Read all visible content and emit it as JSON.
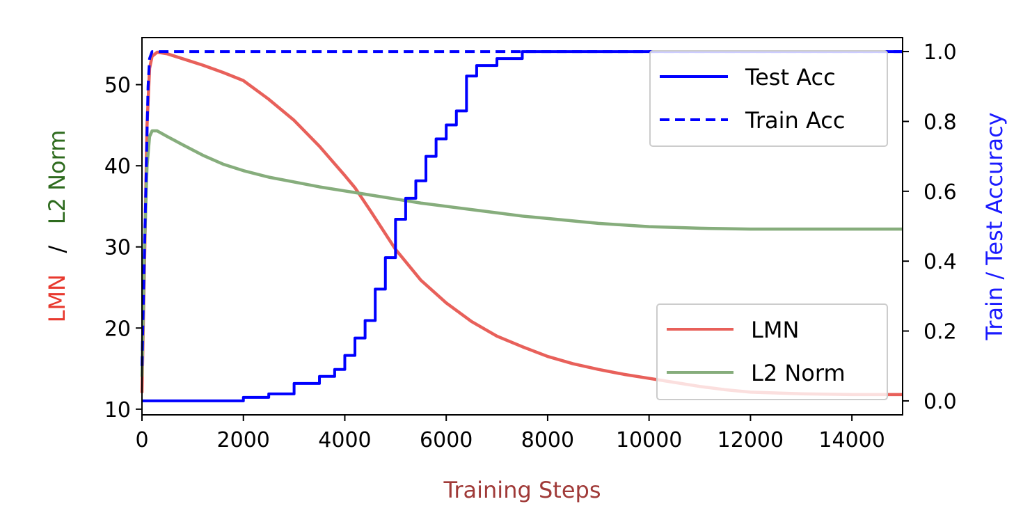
{
  "chart_data": {
    "type": "line",
    "xlabel": "Training Steps",
    "ylabel_left": {
      "part1": "LMN",
      "separator": "/",
      "part2": "L2 Norm"
    },
    "ylabel_right": "Train / Test Accuracy",
    "xlim": [
      0,
      15000
    ],
    "ylim_left": [
      9.3,
      55.8
    ],
    "ylim_right": [
      -0.04,
      1.04
    ],
    "x_ticks": [
      "0",
      "2000",
      "4000",
      "6000",
      "8000",
      "10000",
      "12000",
      "14000"
    ],
    "x_tick_values": [
      0,
      2000,
      4000,
      6000,
      8000,
      10000,
      12000,
      14000
    ],
    "y_left_ticks": [
      "10",
      "20",
      "30",
      "40",
      "50"
    ],
    "y_left_tick_values": [
      10,
      20,
      30,
      40,
      50
    ],
    "y_right_ticks": [
      "0.0",
      "0.2",
      "0.4",
      "0.6",
      "0.8",
      "1.0"
    ],
    "y_right_tick_values": [
      0.0,
      0.2,
      0.4,
      0.6,
      0.8,
      1.0
    ],
    "grid": false,
    "colors": {
      "lmn": "#e8605a",
      "l2norm": "#86ad7c",
      "acc": "#0000ff",
      "label_lmn": "#e8392e",
      "label_l2": "#2e6b1e",
      "label_right": "#1a1aff",
      "xlabel": "#a03a38"
    },
    "series": [
      {
        "name": "LMN",
        "axis": "left",
        "x": [
          0,
          50,
          100,
          150,
          200,
          300,
          500,
          800,
          1200,
          1600,
          2000,
          2500,
          3000,
          3500,
          4000,
          4200,
          4500,
          5000,
          5500,
          6000,
          6500,
          7000,
          7500,
          8000,
          8500,
          9000,
          9500,
          10000,
          10500,
          11000,
          11500,
          12000,
          13000,
          14000,
          15000
        ],
        "y": [
          12,
          28,
          45,
          52,
          53.5,
          54,
          53.8,
          53.2,
          52.4,
          51.5,
          50.5,
          48.2,
          45.6,
          42.4,
          38.8,
          37.3,
          34.5,
          29.7,
          25.9,
          23.1,
          20.8,
          19.0,
          17.7,
          16.5,
          15.6,
          14.9,
          14.3,
          13.8,
          13.3,
          12.8,
          12.4,
          12.1,
          11.9,
          11.8,
          11.8
        ]
      },
      {
        "name": "L2 Norm",
        "axis": "left",
        "x": [
          0,
          50,
          100,
          150,
          200,
          300,
          500,
          800,
          1200,
          1600,
          2000,
          2500,
          3000,
          3500,
          4000,
          4500,
          5000,
          5500,
          6000,
          6500,
          7000,
          7500,
          8000,
          8500,
          9000,
          9500,
          10000,
          10500,
          11000,
          11500,
          12000,
          13000,
          14000,
          15000
        ],
        "y": [
          14,
          30,
          40,
          43.6,
          44.3,
          44.3,
          43.6,
          42.6,
          41.3,
          40.2,
          39.4,
          38.6,
          38.0,
          37.4,
          36.9,
          36.4,
          35.9,
          35.4,
          35.0,
          34.6,
          34.2,
          33.8,
          33.5,
          33.2,
          32.9,
          32.7,
          32.5,
          32.4,
          32.3,
          32.25,
          32.2,
          32.2,
          32.2,
          32.2
        ]
      },
      {
        "name": "Test Acc",
        "axis": "right",
        "style": "solid",
        "x": [
          0,
          1900,
          2000,
          2500,
          3000,
          3500,
          3800,
          4000,
          4200,
          4400,
          4600,
          4800,
          5000,
          5200,
          5400,
          5600,
          5800,
          6000,
          6200,
          6400,
          6600,
          7000,
          7500,
          15000
        ],
        "y": [
          0.0,
          0.0,
          0.01,
          0.02,
          0.05,
          0.07,
          0.09,
          0.13,
          0.18,
          0.23,
          0.32,
          0.41,
          0.52,
          0.58,
          0.63,
          0.7,
          0.75,
          0.79,
          0.83,
          0.93,
          0.96,
          0.98,
          1.0,
          1.0
        ]
      },
      {
        "name": "Train Acc",
        "axis": "right",
        "style": "dashed",
        "x": [
          0,
          60,
          120,
          150,
          200,
          15000
        ],
        "y": [
          0.1,
          0.5,
          0.9,
          0.98,
          1.0,
          1.0
        ]
      }
    ],
    "legend_upper": {
      "placement": "top-right",
      "items": [
        {
          "label": "Test Acc",
          "style": "solid"
        },
        {
          "label": "Train Acc",
          "style": "dashed"
        }
      ]
    },
    "legend_lower": {
      "placement": "lower-right",
      "items": [
        {
          "label": "LMN"
        },
        {
          "label": "L2 Norm"
        }
      ]
    }
  }
}
